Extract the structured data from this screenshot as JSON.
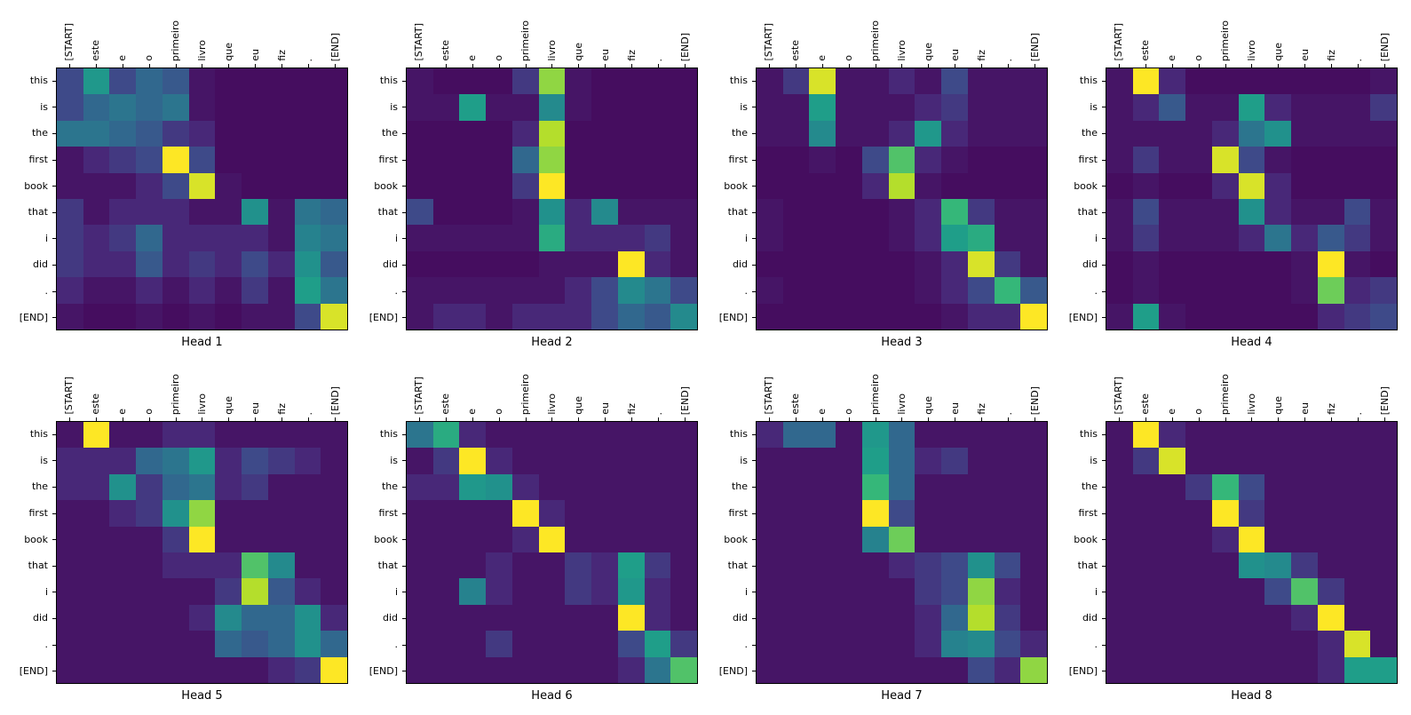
{
  "figure": {
    "background": "#ffffff",
    "text_color": "#000000"
  },
  "chart_data": {
    "type": "heatmap",
    "grid": "2x4",
    "x_labels": [
      "[START]",
      "este",
      "e",
      "o",
      "primeiro",
      "livro",
      "que",
      "eu",
      "fiz",
      ".",
      "[END]"
    ],
    "y_labels": [
      "this",
      "is",
      "the",
      "first",
      "book",
      "that",
      "i",
      "did",
      ".",
      "[END]"
    ],
    "value_range": [
      0,
      1
    ],
    "colormap": {
      "name": "viridis",
      "anchors": [
        {
          "t": 0.0,
          "hex": "#440154"
        },
        {
          "t": 0.1,
          "hex": "#482878"
        },
        {
          "t": 0.2,
          "hex": "#3e4a89"
        },
        {
          "t": 0.3,
          "hex": "#31688e"
        },
        {
          "t": 0.4,
          "hex": "#26828e"
        },
        {
          "t": 0.5,
          "hex": "#21918c"
        },
        {
          "t": 0.6,
          "hex": "#1f9e89"
        },
        {
          "t": 0.7,
          "hex": "#35b779"
        },
        {
          "t": 0.8,
          "hex": "#6dcd59"
        },
        {
          "t": 0.9,
          "hex": "#b4de2c"
        },
        {
          "t": 1.0,
          "hex": "#fde725"
        }
      ]
    },
    "heads": [
      {
        "title": "Head 1",
        "values": [
          [
            0.2,
            0.55,
            0.2,
            0.3,
            0.25,
            0.05,
            0.03,
            0.03,
            0.03,
            0.03,
            0.03
          ],
          [
            0.2,
            0.3,
            0.35,
            0.3,
            0.35,
            0.05,
            0.03,
            0.03,
            0.03,
            0.03,
            0.03
          ],
          [
            0.35,
            0.35,
            0.3,
            0.25,
            0.15,
            0.1,
            0.03,
            0.03,
            0.03,
            0.03,
            0.03
          ],
          [
            0.05,
            0.1,
            0.15,
            0.2,
            1.0,
            0.2,
            0.03,
            0.03,
            0.03,
            0.03,
            0.03
          ],
          [
            0.05,
            0.05,
            0.05,
            0.1,
            0.2,
            0.95,
            0.05,
            0.03,
            0.03,
            0.03,
            0.03
          ],
          [
            0.15,
            0.05,
            0.1,
            0.1,
            0.1,
            0.05,
            0.05,
            0.5,
            0.05,
            0.35,
            0.3
          ],
          [
            0.15,
            0.1,
            0.15,
            0.3,
            0.1,
            0.1,
            0.1,
            0.1,
            0.05,
            0.4,
            0.35
          ],
          [
            0.15,
            0.1,
            0.1,
            0.25,
            0.1,
            0.15,
            0.1,
            0.2,
            0.1,
            0.5,
            0.25
          ],
          [
            0.1,
            0.05,
            0.05,
            0.1,
            0.05,
            0.1,
            0.05,
            0.15,
            0.05,
            0.6,
            0.35
          ],
          [
            0.05,
            0.03,
            0.03,
            0.05,
            0.03,
            0.05,
            0.03,
            0.05,
            0.05,
            0.2,
            0.95
          ]
        ]
      },
      {
        "title": "Head 2",
        "values": [
          [
            0.05,
            0.03,
            0.03,
            0.03,
            0.15,
            0.85,
            0.05,
            0.03,
            0.03,
            0.03,
            0.03
          ],
          [
            0.05,
            0.05,
            0.6,
            0.05,
            0.05,
            0.45,
            0.05,
            0.03,
            0.03,
            0.03,
            0.03
          ],
          [
            0.03,
            0.03,
            0.03,
            0.03,
            0.1,
            0.9,
            0.03,
            0.03,
            0.03,
            0.03,
            0.03
          ],
          [
            0.03,
            0.03,
            0.03,
            0.03,
            0.3,
            0.85,
            0.03,
            0.03,
            0.03,
            0.03,
            0.03
          ],
          [
            0.03,
            0.03,
            0.03,
            0.03,
            0.15,
            1.0,
            0.03,
            0.03,
            0.03,
            0.03,
            0.03
          ],
          [
            0.2,
            0.03,
            0.03,
            0.03,
            0.05,
            0.5,
            0.1,
            0.45,
            0.05,
            0.05,
            0.05
          ],
          [
            0.05,
            0.05,
            0.05,
            0.05,
            0.05,
            0.65,
            0.1,
            0.1,
            0.1,
            0.15,
            0.05
          ],
          [
            0.03,
            0.03,
            0.03,
            0.03,
            0.03,
            0.05,
            0.05,
            0.05,
            1.0,
            0.1,
            0.05
          ],
          [
            0.05,
            0.05,
            0.05,
            0.05,
            0.05,
            0.05,
            0.1,
            0.2,
            0.45,
            0.35,
            0.2
          ],
          [
            0.05,
            0.1,
            0.1,
            0.05,
            0.1,
            0.1,
            0.1,
            0.2,
            0.3,
            0.25,
            0.45
          ]
        ]
      },
      {
        "title": "Head 3",
        "values": [
          [
            0.05,
            0.15,
            0.95,
            0.05,
            0.05,
            0.1,
            0.05,
            0.2,
            0.05,
            0.05,
            0.05
          ],
          [
            0.05,
            0.05,
            0.6,
            0.05,
            0.05,
            0.05,
            0.1,
            0.15,
            0.05,
            0.05,
            0.05
          ],
          [
            0.05,
            0.05,
            0.45,
            0.05,
            0.05,
            0.1,
            0.55,
            0.1,
            0.05,
            0.05,
            0.05
          ],
          [
            0.03,
            0.03,
            0.05,
            0.03,
            0.2,
            0.75,
            0.1,
            0.05,
            0.03,
            0.03,
            0.03
          ],
          [
            0.03,
            0.03,
            0.03,
            0.03,
            0.1,
            0.9,
            0.05,
            0.03,
            0.03,
            0.03,
            0.03
          ],
          [
            0.05,
            0.03,
            0.03,
            0.03,
            0.03,
            0.05,
            0.1,
            0.7,
            0.15,
            0.05,
            0.05
          ],
          [
            0.05,
            0.03,
            0.03,
            0.03,
            0.03,
            0.05,
            0.1,
            0.6,
            0.65,
            0.05,
            0.05
          ],
          [
            0.03,
            0.03,
            0.03,
            0.03,
            0.03,
            0.03,
            0.05,
            0.1,
            0.95,
            0.15,
            0.05
          ],
          [
            0.05,
            0.03,
            0.03,
            0.03,
            0.03,
            0.03,
            0.05,
            0.1,
            0.2,
            0.7,
            0.25
          ],
          [
            0.03,
            0.03,
            0.03,
            0.03,
            0.03,
            0.03,
            0.03,
            0.05,
            0.1,
            0.1,
            1.0
          ]
        ]
      },
      {
        "title": "Head 4",
        "values": [
          [
            0.05,
            1.0,
            0.1,
            0.03,
            0.03,
            0.03,
            0.03,
            0.03,
            0.03,
            0.03,
            0.05
          ],
          [
            0.05,
            0.1,
            0.25,
            0.05,
            0.05,
            0.6,
            0.1,
            0.05,
            0.05,
            0.05,
            0.15
          ],
          [
            0.05,
            0.05,
            0.05,
            0.05,
            0.1,
            0.35,
            0.5,
            0.05,
            0.05,
            0.05,
            0.05
          ],
          [
            0.05,
            0.15,
            0.05,
            0.05,
            0.95,
            0.2,
            0.05,
            0.03,
            0.03,
            0.03,
            0.03
          ],
          [
            0.03,
            0.05,
            0.03,
            0.03,
            0.1,
            0.95,
            0.1,
            0.03,
            0.03,
            0.03,
            0.03
          ],
          [
            0.05,
            0.2,
            0.05,
            0.05,
            0.05,
            0.5,
            0.1,
            0.05,
            0.05,
            0.2,
            0.05
          ],
          [
            0.05,
            0.15,
            0.05,
            0.05,
            0.05,
            0.1,
            0.35,
            0.1,
            0.25,
            0.15,
            0.05
          ],
          [
            0.03,
            0.05,
            0.03,
            0.03,
            0.03,
            0.03,
            0.03,
            0.05,
            1.0,
            0.05,
            0.03
          ],
          [
            0.03,
            0.05,
            0.03,
            0.03,
            0.03,
            0.03,
            0.03,
            0.05,
            0.8,
            0.1,
            0.15
          ],
          [
            0.05,
            0.6,
            0.05,
            0.03,
            0.03,
            0.03,
            0.03,
            0.03,
            0.1,
            0.15,
            0.2
          ]
        ]
      },
      {
        "title": "Head 5",
        "values": [
          [
            0.05,
            1.0,
            0.05,
            0.05,
            0.1,
            0.1,
            0.05,
            0.05,
            0.05,
            0.05,
            0.05
          ],
          [
            0.1,
            0.1,
            0.1,
            0.3,
            0.35,
            0.55,
            0.1,
            0.2,
            0.15,
            0.1,
            0.05
          ],
          [
            0.1,
            0.1,
            0.5,
            0.15,
            0.3,
            0.35,
            0.1,
            0.15,
            0.05,
            0.05,
            0.05
          ],
          [
            0.05,
            0.05,
            0.1,
            0.15,
            0.5,
            0.85,
            0.05,
            0.05,
            0.05,
            0.05,
            0.05
          ],
          [
            0.05,
            0.05,
            0.05,
            0.05,
            0.15,
            1.0,
            0.05,
            0.05,
            0.05,
            0.05,
            0.05
          ],
          [
            0.05,
            0.05,
            0.05,
            0.05,
            0.1,
            0.1,
            0.1,
            0.75,
            0.45,
            0.05,
            0.05
          ],
          [
            0.05,
            0.05,
            0.05,
            0.05,
            0.05,
            0.05,
            0.15,
            0.9,
            0.25,
            0.1,
            0.05
          ],
          [
            0.05,
            0.05,
            0.05,
            0.05,
            0.05,
            0.1,
            0.45,
            0.3,
            0.3,
            0.5,
            0.1
          ],
          [
            0.05,
            0.05,
            0.05,
            0.05,
            0.05,
            0.05,
            0.3,
            0.25,
            0.3,
            0.5,
            0.3
          ],
          [
            0.05,
            0.05,
            0.05,
            0.05,
            0.05,
            0.05,
            0.05,
            0.05,
            0.1,
            0.15,
            1.0
          ]
        ]
      },
      {
        "title": "Head 6",
        "values": [
          [
            0.35,
            0.65,
            0.1,
            0.05,
            0.05,
            0.05,
            0.05,
            0.05,
            0.05,
            0.05,
            0.05
          ],
          [
            0.05,
            0.15,
            1.0,
            0.1,
            0.05,
            0.05,
            0.05,
            0.05,
            0.05,
            0.05,
            0.05
          ],
          [
            0.1,
            0.1,
            0.55,
            0.5,
            0.1,
            0.05,
            0.05,
            0.05,
            0.05,
            0.05,
            0.05
          ],
          [
            0.05,
            0.05,
            0.05,
            0.05,
            1.0,
            0.1,
            0.05,
            0.05,
            0.05,
            0.05,
            0.05
          ],
          [
            0.05,
            0.05,
            0.05,
            0.05,
            0.1,
            1.0,
            0.05,
            0.05,
            0.05,
            0.05,
            0.05
          ],
          [
            0.05,
            0.05,
            0.05,
            0.1,
            0.05,
            0.05,
            0.15,
            0.1,
            0.6,
            0.15,
            0.05
          ],
          [
            0.05,
            0.05,
            0.4,
            0.1,
            0.05,
            0.05,
            0.15,
            0.1,
            0.55,
            0.1,
            0.05
          ],
          [
            0.05,
            0.05,
            0.05,
            0.05,
            0.05,
            0.05,
            0.05,
            0.05,
            1.0,
            0.1,
            0.05
          ],
          [
            0.05,
            0.05,
            0.05,
            0.15,
            0.05,
            0.05,
            0.05,
            0.05,
            0.2,
            0.6,
            0.15
          ],
          [
            0.05,
            0.05,
            0.05,
            0.05,
            0.05,
            0.05,
            0.05,
            0.05,
            0.1,
            0.35,
            0.75
          ]
        ]
      },
      {
        "title": "Head 7",
        "values": [
          [
            0.1,
            0.3,
            0.3,
            0.05,
            0.55,
            0.3,
            0.05,
            0.05,
            0.05,
            0.05,
            0.05
          ],
          [
            0.05,
            0.05,
            0.05,
            0.05,
            0.6,
            0.3,
            0.1,
            0.15,
            0.05,
            0.05,
            0.05
          ],
          [
            0.05,
            0.05,
            0.05,
            0.05,
            0.7,
            0.3,
            0.05,
            0.05,
            0.05,
            0.05,
            0.05
          ],
          [
            0.05,
            0.05,
            0.05,
            0.05,
            1.0,
            0.2,
            0.05,
            0.05,
            0.05,
            0.05,
            0.05
          ],
          [
            0.05,
            0.05,
            0.05,
            0.05,
            0.4,
            0.8,
            0.05,
            0.05,
            0.05,
            0.05,
            0.05
          ],
          [
            0.05,
            0.05,
            0.05,
            0.05,
            0.05,
            0.1,
            0.15,
            0.2,
            0.5,
            0.2,
            0.05
          ],
          [
            0.05,
            0.05,
            0.05,
            0.05,
            0.05,
            0.05,
            0.15,
            0.2,
            0.85,
            0.1,
            0.05
          ],
          [
            0.05,
            0.05,
            0.05,
            0.05,
            0.05,
            0.05,
            0.1,
            0.3,
            0.9,
            0.15,
            0.05
          ],
          [
            0.05,
            0.05,
            0.05,
            0.05,
            0.05,
            0.05,
            0.1,
            0.4,
            0.45,
            0.2,
            0.1
          ],
          [
            0.05,
            0.05,
            0.05,
            0.05,
            0.05,
            0.05,
            0.05,
            0.05,
            0.2,
            0.1,
            0.85
          ]
        ]
      },
      {
        "title": "Head 8",
        "values": [
          [
            0.05,
            1.0,
            0.1,
            0.05,
            0.05,
            0.05,
            0.05,
            0.05,
            0.05,
            0.05,
            0.05
          ],
          [
            0.05,
            0.15,
            0.95,
            0.05,
            0.05,
            0.05,
            0.05,
            0.05,
            0.05,
            0.05,
            0.05
          ],
          [
            0.05,
            0.05,
            0.05,
            0.15,
            0.7,
            0.2,
            0.05,
            0.05,
            0.05,
            0.05,
            0.05
          ],
          [
            0.05,
            0.05,
            0.05,
            0.05,
            1.0,
            0.15,
            0.05,
            0.05,
            0.05,
            0.05,
            0.05
          ],
          [
            0.05,
            0.05,
            0.05,
            0.05,
            0.1,
            1.0,
            0.05,
            0.05,
            0.05,
            0.05,
            0.05
          ],
          [
            0.05,
            0.05,
            0.05,
            0.05,
            0.05,
            0.5,
            0.45,
            0.15,
            0.05,
            0.05,
            0.05
          ],
          [
            0.05,
            0.05,
            0.05,
            0.05,
            0.05,
            0.05,
            0.2,
            0.75,
            0.15,
            0.05,
            0.05
          ],
          [
            0.05,
            0.05,
            0.05,
            0.05,
            0.05,
            0.05,
            0.05,
            0.1,
            1.0,
            0.05,
            0.05
          ],
          [
            0.05,
            0.05,
            0.05,
            0.05,
            0.05,
            0.05,
            0.05,
            0.05,
            0.1,
            0.95,
            0.05
          ],
          [
            0.05,
            0.05,
            0.05,
            0.05,
            0.05,
            0.05,
            0.05,
            0.05,
            0.1,
            0.6,
            0.6
          ]
        ]
      }
    ]
  }
}
